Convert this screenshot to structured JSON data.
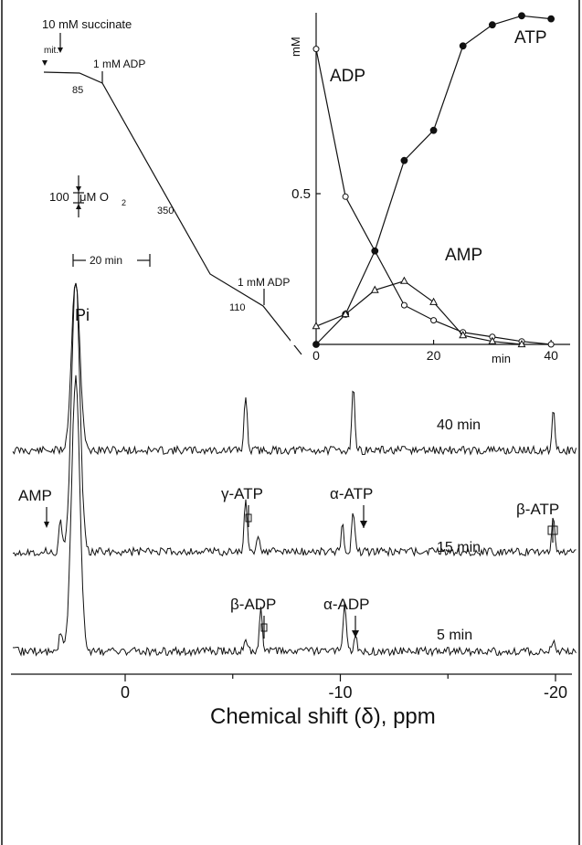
{
  "chart_data": [
    {
      "type": "line",
      "title": "",
      "panel": "oxygen-trace",
      "labels": {
        "succinate": "10 mM succinate",
        "mit": "mit.",
        "adp1": "1 mM ADP",
        "adp2": "1 mM ADP",
        "rate1": "85",
        "rate2": "350",
        "rate3": "110",
        "o2_scale_num": "100",
        "o2_scale_unit": "μM O",
        "o2_scale_sub": "2",
        "time_scale": "20 min"
      }
    },
    {
      "type": "line",
      "title": "",
      "panel": "inset-concentrations",
      "xlabel": "min",
      "ylabel": "mM",
      "xlim": [
        0,
        42
      ],
      "ylim": [
        0,
        1.1
      ],
      "x_ticks": [
        0,
        20,
        40
      ],
      "y_ticks": [
        0.5
      ],
      "x_tick_labels": [
        "0",
        "20",
        "40"
      ],
      "y_tick_labels": [
        "0.5"
      ],
      "grid": false,
      "series": [
        {
          "name": "ATP",
          "marker": "filled-circle",
          "x": [
            0,
            5,
            10,
            15,
            20,
            25,
            30,
            35,
            40
          ],
          "y": [
            0.0,
            0.1,
            0.31,
            0.61,
            0.71,
            0.99,
            1.06,
            1.09,
            1.08
          ]
        },
        {
          "name": "ADP",
          "marker": "open-circle",
          "x": [
            0,
            5,
            15,
            20,
            25,
            30,
            35,
            40
          ],
          "y": [
            0.98,
            0.49,
            0.13,
            0.08,
            0.04,
            0.025,
            0.01,
            0.0
          ]
        },
        {
          "name": "AMP",
          "marker": "open-triangle",
          "x": [
            0,
            5,
            10,
            15,
            20,
            25,
            30,
            35
          ],
          "y": [
            0.06,
            0.1,
            0.18,
            0.21,
            0.14,
            0.03,
            0.01,
            0.0
          ]
        }
      ]
    },
    {
      "type": "line",
      "title": "",
      "panel": "31P-NMR-spectra",
      "xlabel": "Chemical shift (δ), ppm",
      "xlim": [
        4.3,
        -20.8
      ],
      "x_ticks": [
        0,
        -10,
        -20
      ],
      "x_tick_labels": [
        "0",
        "-10",
        "-20"
      ],
      "spectra": [
        {
          "name": "40 min",
          "peaks_ppm": [
            2.3,
            -5.6,
            -10.6,
            -19.9
          ]
        },
        {
          "name": "15 min",
          "peaks_ppm": [
            3.0,
            2.3,
            -5.6,
            -6.2,
            -10.1,
            -10.6,
            -19.9
          ]
        },
        {
          "name": "5 min",
          "peaks_ppm": [
            3.0,
            2.3,
            -5.6,
            -6.3,
            -10.2,
            -10.7,
            -19.9
          ]
        }
      ],
      "peak_labels": {
        "pi": "Pi",
        "amp": "AMP",
        "gamma_atp": "γ-ATP",
        "alpha_atp": "α-ATP",
        "beta_atp": "β-ATP",
        "beta_adp": "β-ADP",
        "alpha_adp": "α-ADP"
      }
    }
  ]
}
